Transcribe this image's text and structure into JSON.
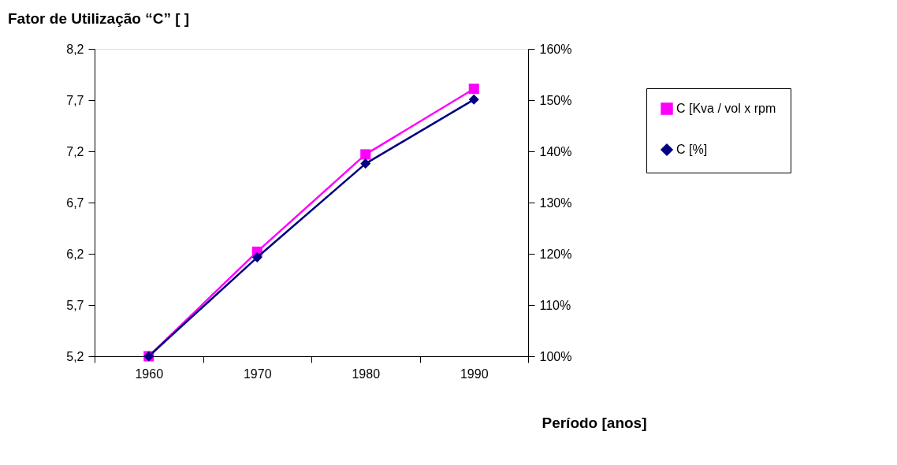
{
  "chart_data": {
    "type": "line",
    "title": "Fator de Utilização “C” [ ]",
    "xlabel": "Período [anos]",
    "categories": [
      "1960",
      "1970",
      "1980",
      "1990"
    ],
    "series": [
      {
        "name": "C [Kva / vol x rpm",
        "color": "#ff00ff",
        "marker": "square",
        "values": [
          5.2,
          6.22,
          7.17,
          7.81
        ]
      },
      {
        "name": "C [%]",
        "color": "#000080",
        "marker": "diamond",
        "axis": "y2",
        "values": [
          100,
          119.3,
          137.6,
          150.1
        ]
      }
    ],
    "ylim": [
      5.2,
      8.2
    ],
    "yticks": [
      {
        "value": 5.2,
        "label": "5,2"
      },
      {
        "value": 5.7,
        "label": "5,7"
      },
      {
        "value": 6.2,
        "label": "6,2"
      },
      {
        "value": 6.7,
        "label": "6,7"
      },
      {
        "value": 7.2,
        "label": "7,2"
      },
      {
        "value": 7.7,
        "label": "7,7"
      },
      {
        "value": 8.2,
        "label": "8,2"
      }
    ],
    "y2lim": [
      100,
      160
    ],
    "y2ticks": [
      {
        "value": 100,
        "label": "100%"
      },
      {
        "value": 110,
        "label": "110%"
      },
      {
        "value": 120,
        "label": "120%"
      },
      {
        "value": 130,
        "label": "130%"
      },
      {
        "value": 140,
        "label": "140%"
      },
      {
        "value": 150,
        "label": "150%"
      },
      {
        "value": 160,
        "label": "160%"
      }
    ],
    "grid": false,
    "legend": "right",
    "line_style": "solid"
  }
}
